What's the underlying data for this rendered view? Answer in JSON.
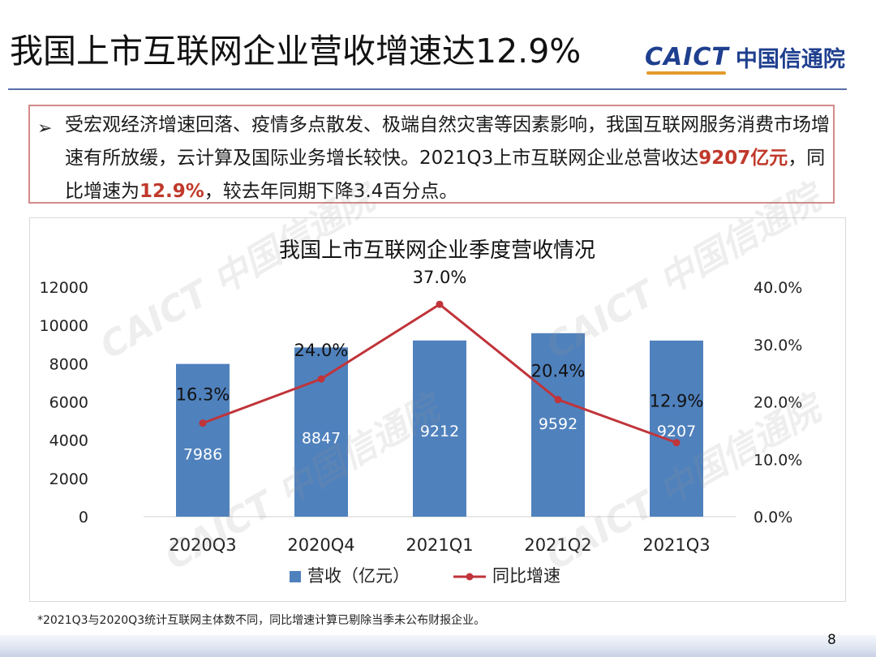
{
  "slide": {
    "title": "我国上市互联网企业营收增速达12.9%",
    "page_number": "8"
  },
  "logo": {
    "mark": "CAICT",
    "name": "中国信通院"
  },
  "callout": {
    "bullet": "➢",
    "line_part1": "受宏观经济增速回落、疫情多点散发、极端自然灾害等因素影响，我国互联网服务消费市场增速有所放缓，云计算及国际业务增长较快。2021Q3上市互联网企业总营收达",
    "revenue_highlight": "9207亿元",
    "line_part2": "，同比增速为",
    "growth_highlight": "12.9%",
    "line_part3": "，较去年同期下降3.4百分点。",
    "highlight_color": "#c0392b"
  },
  "watermark": {
    "text": "CAICT 中国信通院"
  },
  "chart_data": {
    "type": "bar",
    "title": "我国上市互联网企业季度营收情况",
    "categories": [
      "2020Q3",
      "2020Q4",
      "2021Q1",
      "2021Q2",
      "2021Q3"
    ],
    "series": [
      {
        "name": "营收（亿元）",
        "type": "bar",
        "axis": "left",
        "color": "#4f81bd",
        "values": [
          7986,
          8847,
          9212,
          9592,
          9207
        ]
      },
      {
        "name": "同比增速",
        "type": "line",
        "axis": "right",
        "color": "#c0343a",
        "values": [
          16.3,
          24.0,
          37.0,
          20.4,
          12.9
        ],
        "labels": [
          "16.3%",
          "24.0%",
          "37.0%",
          "20.4%",
          "12.9%"
        ]
      }
    ],
    "y_left": {
      "lim": [
        0,
        12000
      ],
      "ticks": [
        "0",
        "2000",
        "4000",
        "6000",
        "8000",
        "10000",
        "12000"
      ]
    },
    "y_right": {
      "lim": [
        0,
        40
      ],
      "ticks": [
        "0.0%",
        "10.0%",
        "20.0%",
        "30.0%",
        "40.0%"
      ]
    },
    "grid": false,
    "legend": "bottom"
  },
  "footnote": "*2021Q3与2020Q3统计互联网主体数不同，同比增速计算已剔除当季未公布财报企业。"
}
